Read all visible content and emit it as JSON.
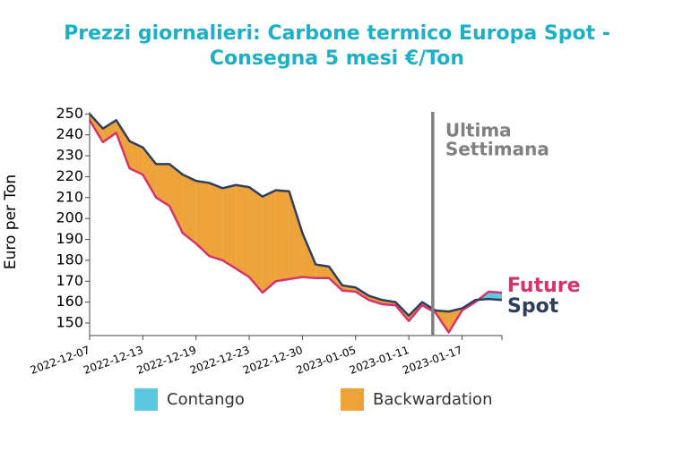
{
  "chart_data": {
    "type": "area_between",
    "title": [
      "Prezzi giornalieri: Carbone termico Europa Spot -",
      "Consegna 5 mesi €/Ton"
    ],
    "y_label": "Euro per Ton",
    "annotation": [
      "Ultima",
      "Settimana"
    ],
    "categories": [
      "2022-12-07",
      null,
      null,
      null,
      "2022-12-13",
      null,
      null,
      null,
      "2022-12-19",
      null,
      null,
      null,
      "2022-12-23",
      null,
      null,
      null,
      "2022-12-30",
      null,
      null,
      null,
      "2023-01-05",
      null,
      null,
      null,
      "2023-01-11",
      null,
      null,
      null,
      "2023-01-17",
      null,
      null,
      null
    ],
    "series": [
      {
        "name": "Spot",
        "color": "#2e3f5e",
        "values": [
          250,
          243,
          247,
          237,
          234,
          226,
          226,
          221,
          218,
          217,
          214.5,
          216,
          215,
          210.5,
          213.5,
          213,
          193,
          178,
          177,
          168,
          167,
          163,
          161,
          160,
          153.5,
          160,
          156,
          155.5,
          157,
          161,
          161.5,
          161
        ]
      },
      {
        "name": "Future",
        "color": "#d6336c",
        "values": [
          247,
          236.5,
          241,
          224,
          221,
          210,
          206,
          193,
          188,
          182,
          180,
          176,
          172,
          164.5,
          170,
          171,
          172,
          171.5,
          171.5,
          165.5,
          165,
          161,
          159,
          158.5,
          151,
          158.5,
          155,
          145.5,
          156,
          160,
          165,
          164.5
        ]
      }
    ],
    "fills": [
      {
        "name": "Contango",
        "color": "#5bc8e0"
      },
      {
        "name": "Backwardation",
        "color": "#eda23a"
      }
    ],
    "ylim": [
      144,
      251
    ],
    "yticks": [
      150,
      160,
      170,
      180,
      190,
      200,
      210,
      220,
      230,
      240,
      250
    ],
    "vline_color": "#808080",
    "title_color": "#1ab0c8"
  }
}
